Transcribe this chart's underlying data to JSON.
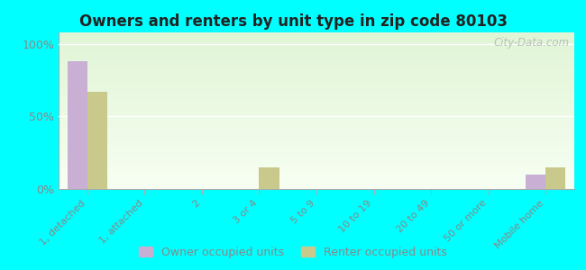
{
  "title": "Owners and renters by unit type in zip code 80103",
  "categories": [
    "1, detached",
    "1, attached",
    "2",
    "3 or 4",
    "5 to 9",
    "10 to 19",
    "20 to 49",
    "50 or more",
    "Mobile home"
  ],
  "owner_values": [
    88,
    0,
    0,
    0,
    0,
    0,
    0,
    0,
    10
  ],
  "renter_values": [
    67,
    0,
    0,
    15,
    0,
    0,
    0,
    0,
    15
  ],
  "owner_color": "#c9afd4",
  "renter_color": "#c8c98a",
  "background_outer": "#00ffff",
  "background_plot_top_left": "#f0f8e8",
  "background_plot_top_right": "#d8ecd0",
  "background_plot_bottom": "#fafff0",
  "yticks": [
    0,
    50,
    100
  ],
  "ylim": [
    0,
    108
  ],
  "bar_width": 0.35,
  "watermark": "City-Data.com",
  "legend_owner": "Owner occupied units",
  "legend_renter": "Renter occupied units",
  "grid_color": "#ffffff",
  "tick_label_color": "#888888",
  "title_color": "#222222"
}
